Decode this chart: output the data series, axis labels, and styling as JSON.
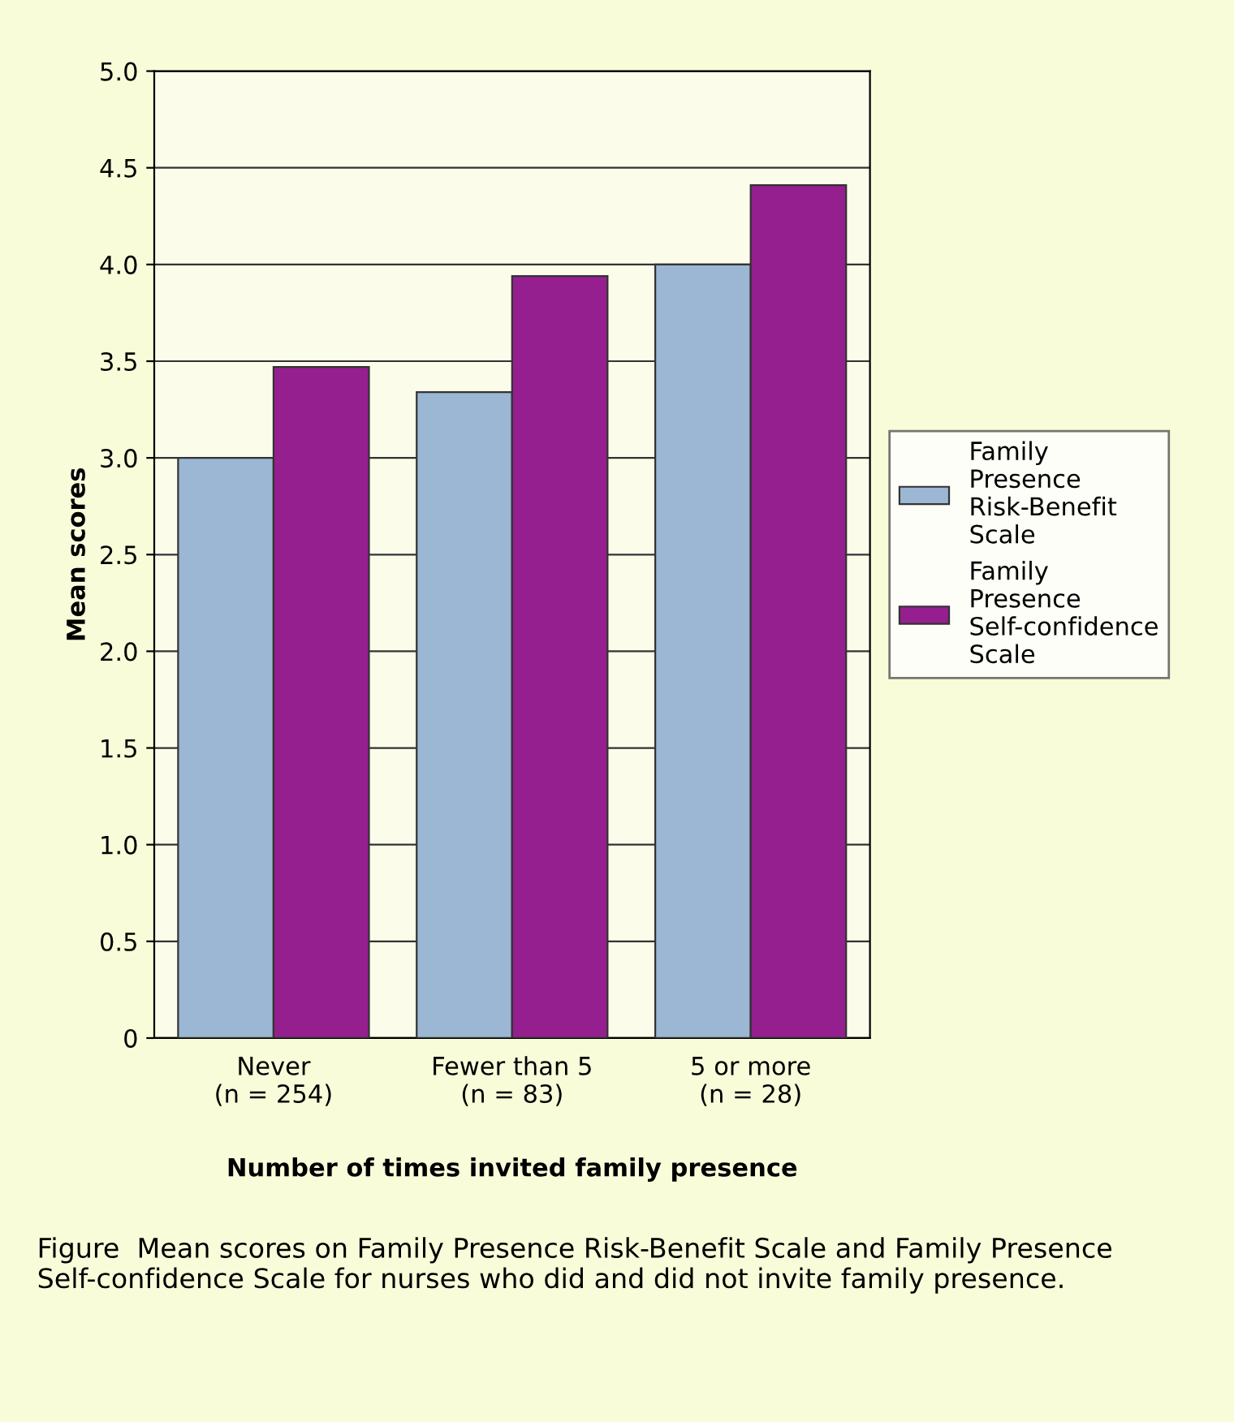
{
  "chart_data": {
    "type": "bar",
    "categories": [
      "Never\n(n = 254)",
      "Fewer than 5\n(n = 83)",
      "5 or more\n(n = 28)"
    ],
    "series": [
      {
        "name": "Family Presence Risk-Benefit Scale",
        "color": "#9bb7d4",
        "values": [
          3.0,
          3.34,
          4.0
        ]
      },
      {
        "name": "Family Presence Self-confidence Scale",
        "color": "#951f8f",
        "values": [
          3.47,
          3.94,
          4.41
        ]
      }
    ],
    "xlabel": "Number of times invited family presence",
    "ylabel": "Mean scores",
    "ylim": [
      0,
      5
    ],
    "yticks": [
      0,
      {
        "value": 0.5,
        "label": "0.5"
      },
      {
        "value": 1,
        "label": "1.0"
      },
      {
        "value": 1.5,
        "label": "1.5"
      },
      {
        "value": 2,
        "label": "2.0"
      },
      {
        "value": 2.5,
        "label": "2.5"
      },
      {
        "value": 3,
        "label": "3.0"
      },
      {
        "value": 3.5,
        "label": "3.5"
      },
      {
        "value": 4,
        "label": "4.0"
      },
      {
        "value": 4.5,
        "label": "4.5"
      },
      {
        "value": 5,
        "label": "5.0"
      }
    ],
    "grid": "y",
    "legend": "right",
    "annotations": [
      "Figure  Mean scores on Family Presence Risk-Benefit Scale and Family Presence Self-confidence Scale for nurses who did and did not invite family presence."
    ]
  }
}
